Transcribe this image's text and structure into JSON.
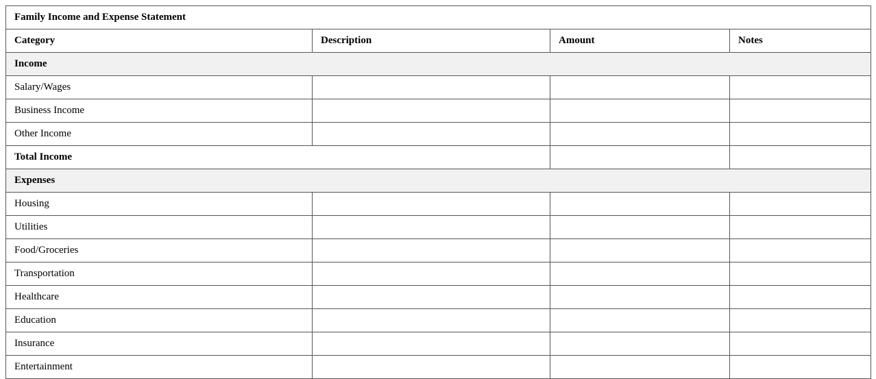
{
  "title": "Family Income and Expense Statement",
  "headers": [
    "Category",
    "Description",
    "Amount",
    "Notes"
  ],
  "income": {
    "label": "Income",
    "rows": [
      "Salary/Wages",
      "Business Income",
      "Other Income"
    ],
    "total_label": "Total Income"
  },
  "expenses": {
    "label": "Expenses",
    "rows": [
      "Housing",
      "Utilities",
      "Food/Groceries",
      "Transportation",
      "Healthcare",
      "Education",
      "Insurance",
      "Entertainment"
    ]
  }
}
